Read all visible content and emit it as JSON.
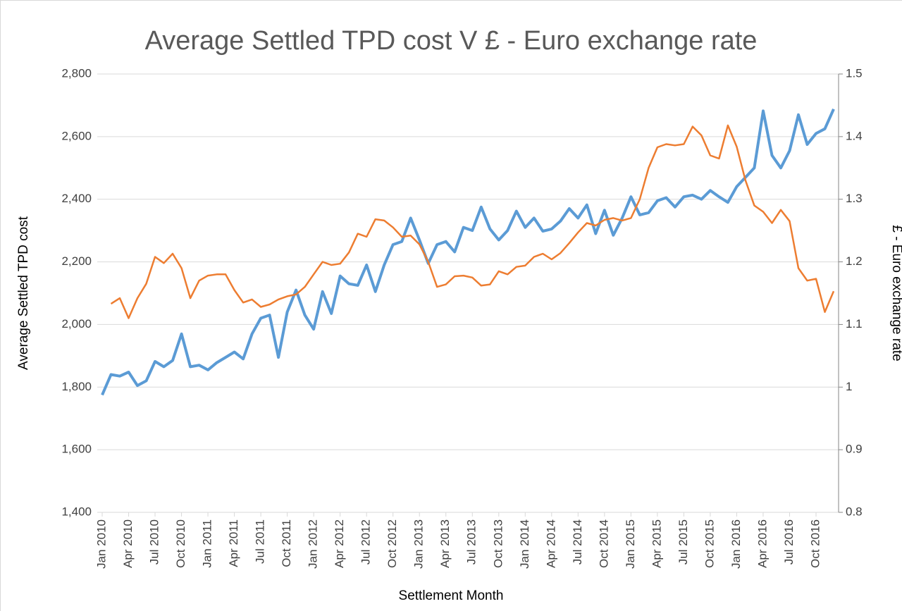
{
  "chart_data": {
    "type": "line",
    "title": "Average Settled TPD cost V £ - Euro exchange rate",
    "x_label": "Settlement Month",
    "y_label": "Average Settled TPD cost",
    "y2_label": "£ - Euro exchange rate",
    "categories": [
      "Jan 2010",
      null,
      null,
      "Apr 2010",
      null,
      null,
      "Jul 2010",
      null,
      null,
      "Oct 2010",
      null,
      null,
      "Jan 2011",
      null,
      null,
      "Apr 2011",
      null,
      null,
      "Jul 2011",
      null,
      null,
      "Oct 2011",
      null,
      null,
      "Jan 2012",
      null,
      null,
      "Apr 2012",
      null,
      null,
      "Jul 2012",
      null,
      null,
      "Oct 2012",
      null,
      null,
      "Jan 2013",
      null,
      null,
      "Apr 2013",
      null,
      null,
      "Jul 2013",
      null,
      null,
      "Oct 2013",
      null,
      null,
      "Jan 2014",
      null,
      null,
      "Apr 2014",
      null,
      null,
      "Jul 2014",
      null,
      null,
      "Oct 2014",
      null,
      null,
      "Jan 2015",
      null,
      null,
      "Apr 2015",
      null,
      null,
      "Jul 2015",
      null,
      null,
      "Oct 2015",
      null,
      null,
      "Jan 2016",
      null,
      null,
      "Apr 2016",
      null,
      null,
      "Jul 2016",
      null,
      null,
      "Oct 2016",
      null,
      null
    ],
    "series": [
      {
        "color": "#5b9bd5",
        "values": [
          1775,
          1840,
          1835,
          1848,
          1805,
          1820,
          1882,
          1865,
          1885,
          1970,
          1865,
          1870,
          1855,
          1878,
          1895,
          1912,
          1890,
          1970,
          2020,
          2030,
          1895,
          2040,
          2110,
          2030,
          1985,
          2105,
          2035,
          2155,
          2130,
          2125,
          2190,
          2105,
          2190,
          2255,
          2265,
          2340,
          2270,
          2195,
          2255,
          2265,
          2232,
          2310,
          2300,
          2375,
          2305,
          2270,
          2300,
          2362,
          2310,
          2340,
          2298,
          2305,
          2330,
          2370,
          2340,
          2382,
          2290,
          2365,
          2285,
          2340,
          2408,
          2350,
          2357,
          2395,
          2405,
          2375,
          2408,
          2413,
          2400,
          2428,
          2408,
          2390,
          2440,
          2470,
          2500,
          2682,
          2540,
          2500,
          2555,
          2670,
          2575,
          2610,
          2625,
          2688
        ]
      },
      {
        "color": "#ed7d31",
        "axis": "y2",
        "values": [
          null,
          1.133,
          1.142,
          1.11,
          1.142,
          1.165,
          1.208,
          1.198,
          1.213,
          1.19,
          1.142,
          1.17,
          1.178,
          1.18,
          1.18,
          1.155,
          1.135,
          1.14,
          1.128,
          1.132,
          1.14,
          1.145,
          1.148,
          1.16,
          1.18,
          1.2,
          1.195,
          1.197,
          1.215,
          1.245,
          1.24,
          1.268,
          1.266,
          1.255,
          1.24,
          1.242,
          1.228,
          1.2,
          1.16,
          1.164,
          1.177,
          1.178,
          1.175,
          1.162,
          1.164,
          1.185,
          1.18,
          1.192,
          1.194,
          1.208,
          1.213,
          1.204,
          1.214,
          1.23,
          1.247,
          1.262,
          1.258,
          1.267,
          1.27,
          1.266,
          1.27,
          1.3,
          1.35,
          1.383,
          1.388,
          1.386,
          1.388,
          1.416,
          1.402,
          1.37,
          1.365,
          1.418,
          1.384,
          1.33,
          1.29,
          1.28,
          1.262,
          1.283,
          1.265,
          1.19,
          1.17,
          1.173,
          1.12,
          1.153
        ]
      }
    ],
    "ylim": [
      1400,
      2800
    ],
    "yticks": [
      {
        "value": 1400,
        "label": "1,400"
      },
      {
        "value": 1600,
        "label": "1,600"
      },
      {
        "value": 1800,
        "label": "1,800"
      },
      {
        "value": 2000,
        "label": "2,000"
      },
      {
        "value": 2200,
        "label": "2,200"
      },
      {
        "value": 2400,
        "label": "2,400"
      },
      {
        "value": 2600,
        "label": "2,600"
      },
      {
        "value": 2800,
        "label": "2,800"
      }
    ],
    "y2lim": [
      0.8,
      1.5
    ],
    "y2ticks": [
      0.8,
      0.9,
      1,
      1.1,
      1.2,
      1.3,
      1.4,
      1.5
    ],
    "grid": true
  }
}
